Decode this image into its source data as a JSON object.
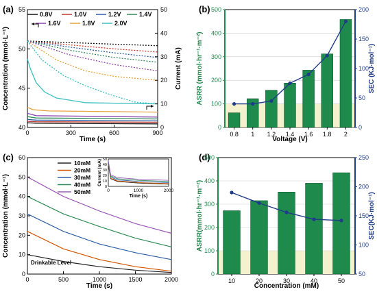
{
  "figure": {
    "panel_labels": [
      "(a)",
      "(b)",
      "(c)",
      "(d)"
    ]
  },
  "chart_data": [
    {
      "panel": "(a)",
      "type": "line",
      "xlabel": "Time (s)",
      "ylabel": "Concentration (mmol·L⁻¹)",
      "y2label": "Current (mA)",
      "xlim": [
        0,
        900
      ],
      "ylim": [
        40,
        55
      ],
      "y2lim": [
        0,
        50
      ],
      "xticks": [
        0,
        300,
        600,
        900
      ],
      "yticks": [
        40,
        45,
        50,
        55
      ],
      "y2ticks": [
        0,
        10,
        20,
        30,
        40,
        50
      ],
      "grid": false,
      "legend_position": "top",
      "series": [
        {
          "name": "0.8V",
          "color": "#111111",
          "conc": [
            [
              0,
              51.0
            ],
            [
              300,
              50.8
            ],
            [
              600,
              50.6
            ],
            [
              900,
              50.4
            ]
          ],
          "current": [
            [
              0,
              2.0
            ],
            [
              60,
              1.8
            ],
            [
              900,
              1.5
            ]
          ]
        },
        {
          "name": "1.0V",
          "color": "#c0392b",
          "conc": [
            [
              0,
              51.0
            ],
            [
              300,
              50.5
            ],
            [
              600,
              50.0
            ],
            [
              900,
              49.6
            ]
          ],
          "current": [
            [
              0,
              2.6
            ],
            [
              60,
              2.4
            ],
            [
              900,
              2.2
            ]
          ]
        },
        {
          "name": "1.2V",
          "color": "#2e5fa8",
          "conc": [
            [
              0,
              51.0
            ],
            [
              300,
              50.2
            ],
            [
              600,
              49.5
            ],
            [
              900,
              48.9
            ]
          ],
          "current": [
            [
              0,
              3.4
            ],
            [
              60,
              3.1
            ],
            [
              900,
              2.8
            ]
          ]
        },
        {
          "name": "1.4V",
          "color": "#2e8b57",
          "conc": [
            [
              0,
              51.0
            ],
            [
              300,
              49.8
            ],
            [
              600,
              48.9
            ],
            [
              900,
              48.3
            ]
          ],
          "current": [
            [
              0,
              4.6
            ],
            [
              60,
              4.0
            ],
            [
              900,
              3.6
            ]
          ]
        },
        {
          "name": "1.6V",
          "color": "#8e44ad",
          "conc": [
            [
              0,
              51.0
            ],
            [
              300,
              49.2
            ],
            [
              600,
              48.0
            ],
            [
              900,
              47.2
            ]
          ],
          "current": [
            [
              0,
              6.0
            ],
            [
              60,
              5.0
            ],
            [
              900,
              4.4
            ]
          ]
        },
        {
          "name": "1.8V",
          "color": "#e6a23c",
          "conc": [
            [
              0,
              51.0
            ],
            [
              200,
              48.6
            ],
            [
              400,
              47.2
            ],
            [
              600,
              46.5
            ],
            [
              900,
              46.0
            ]
          ],
          "current": [
            [
              0,
              8.5
            ],
            [
              40,
              7.5
            ],
            [
              150,
              7.0
            ],
            [
              900,
              6.5
            ]
          ]
        },
        {
          "name": "2.0V",
          "color": "#3bbfbf",
          "conc": [
            [
              0,
              51.0
            ],
            [
              100,
              48.6
            ],
            [
              250,
              46.6
            ],
            [
              400,
              45.3
            ],
            [
              600,
              44.0
            ],
            [
              750,
              43.2
            ],
            [
              900,
              43.0
            ]
          ],
          "current": [
            [
              0,
              29.0
            ],
            [
              20,
              25.0
            ],
            [
              60,
              19.0
            ],
            [
              120,
              15.0
            ],
            [
              200,
              12.5
            ],
            [
              400,
              10.5
            ],
            [
              900,
              10.0
            ]
          ]
        }
      ]
    },
    {
      "panel": "(b)",
      "type": "bar",
      "xlabel": "Voltage (V)",
      "ylabel": "ASRR (mmol·hr⁻¹·m⁻²)",
      "y2label": "SEC (KJ·mol⁻¹)",
      "categories": [
        "0.8",
        "1",
        "1.2",
        "1.4",
        "1.6",
        "1.8",
        "2"
      ],
      "values": [
        62,
        122,
        158,
        188,
        243,
        312,
        458
      ],
      "line_values": [
        40,
        40,
        45,
        75,
        90,
        122,
        180
      ],
      "ylim": [
        0,
        500
      ],
      "y2lim": [
        0,
        200
      ],
      "yticks": [
        0,
        100,
        200,
        300,
        400,
        500
      ],
      "y2ticks": [
        0,
        50,
        100,
        150,
        200
      ],
      "grid": true,
      "bar_color": "#1e8a4c",
      "line_color": "#1f3c88",
      "shade_to": 100
    },
    {
      "panel": "(c)",
      "type": "line",
      "xlabel": "Time (s)",
      "ylabel": "Concentration (mmol·L⁻¹)",
      "xlim": [
        0,
        2000
      ],
      "ylim": [
        0,
        60
      ],
      "xticks": [
        0,
        500,
        1000,
        1500,
        2000
      ],
      "yticks": [
        0,
        10,
        20,
        30,
        40,
        50,
        60
      ],
      "annotation": "Drinkable Level",
      "legend_position": "top-center",
      "series": [
        {
          "name": "10mM",
          "color": "#222222",
          "points": [
            [
              0,
              10
            ],
            [
              500,
              6.5
            ],
            [
              1000,
              3.8
            ],
            [
              1500,
              2.0
            ],
            [
              2000,
              0.8
            ]
          ]
        },
        {
          "name": "20mM",
          "color": "#d35400",
          "points": [
            [
              0,
              22
            ],
            [
              500,
              13
            ],
            [
              1000,
              7.5
            ],
            [
              1500,
              3.8
            ],
            [
              2000,
              1.5
            ]
          ]
        },
        {
          "name": "30mM",
          "color": "#2e5fa8",
          "points": [
            [
              0,
              31
            ],
            [
              500,
              22
            ],
            [
              1000,
              15.5
            ],
            [
              1500,
              11
            ],
            [
              2000,
              7.5
            ]
          ]
        },
        {
          "name": "40mM",
          "color": "#2e8b57",
          "points": [
            [
              0,
              40
            ],
            [
              500,
              31
            ],
            [
              1000,
              24.5
            ],
            [
              1500,
              18.5
            ],
            [
              2000,
              14
            ]
          ]
        },
        {
          "name": "50mM",
          "color": "#9b59b6",
          "points": [
            [
              0,
              50
            ],
            [
              500,
              40
            ],
            [
              1000,
              32.5
            ],
            [
              1500,
              26
            ],
            [
              2000,
              21
            ]
          ]
        }
      ],
      "inset": {
        "xlabel": "Time (s)",
        "ylabel": "Current (mA)",
        "xlim": [
          0,
          2000
        ],
        "ylim": [
          0,
          50
        ],
        "xticks": [
          0,
          1000,
          2000
        ],
        "yticks": [
          0,
          10,
          20,
          30,
          40,
          50
        ],
        "series": [
          {
            "name": "10mM",
            "color": "#222222",
            "points": [
              [
                0,
                40
              ],
              [
                80,
                14
              ],
              [
                300,
                9
              ],
              [
                1000,
                6
              ],
              [
                2000,
                4
              ]
            ]
          },
          {
            "name": "20mM",
            "color": "#d35400",
            "points": [
              [
                0,
                42
              ],
              [
                80,
                15
              ],
              [
                300,
                10
              ],
              [
                1000,
                7
              ],
              [
                2000,
                5
              ]
            ]
          },
          {
            "name": "30mM",
            "color": "#2e5fa8",
            "points": [
              [
                0,
                44
              ],
              [
                80,
                17
              ],
              [
                300,
                12
              ],
              [
                1000,
                9
              ],
              [
                2000,
                7
              ]
            ]
          },
          {
            "name": "40mM",
            "color": "#2e8b57",
            "points": [
              [
                0,
                45
              ],
              [
                80,
                19
              ],
              [
                300,
                14
              ],
              [
                1000,
                11
              ],
              [
                2000,
                9
              ]
            ]
          },
          {
            "name": "50mM",
            "color": "#9b59b6",
            "points": [
              [
                0,
                47
              ],
              [
                80,
                21
              ],
              [
                300,
                16
              ],
              [
                1000,
                13
              ],
              [
                2000,
                11
              ]
            ]
          }
        ]
      }
    },
    {
      "panel": "(d)",
      "type": "bar",
      "xlabel": "Concentration (mM)",
      "ylabel": "ASRR(mmol·hr⁻¹·m⁻²)",
      "y2label": "SEC(KJ·mol⁻¹)",
      "categories": [
        "10",
        "20",
        "30",
        "40",
        "50"
      ],
      "values": [
        272,
        315,
        352,
        390,
        435
      ],
      "line_values": [
        190,
        172,
        156,
        144,
        142
      ],
      "ylim": [
        0,
        500
      ],
      "y2lim": [
        50,
        250
      ],
      "yticks": [
        0,
        100,
        200,
        300,
        400,
        500
      ],
      "y2ticks": [
        50,
        100,
        150,
        200,
        250
      ],
      "grid": true,
      "bar_color": "#1e8a4c",
      "line_color": "#1f3c88",
      "shade_to": 100
    }
  ]
}
